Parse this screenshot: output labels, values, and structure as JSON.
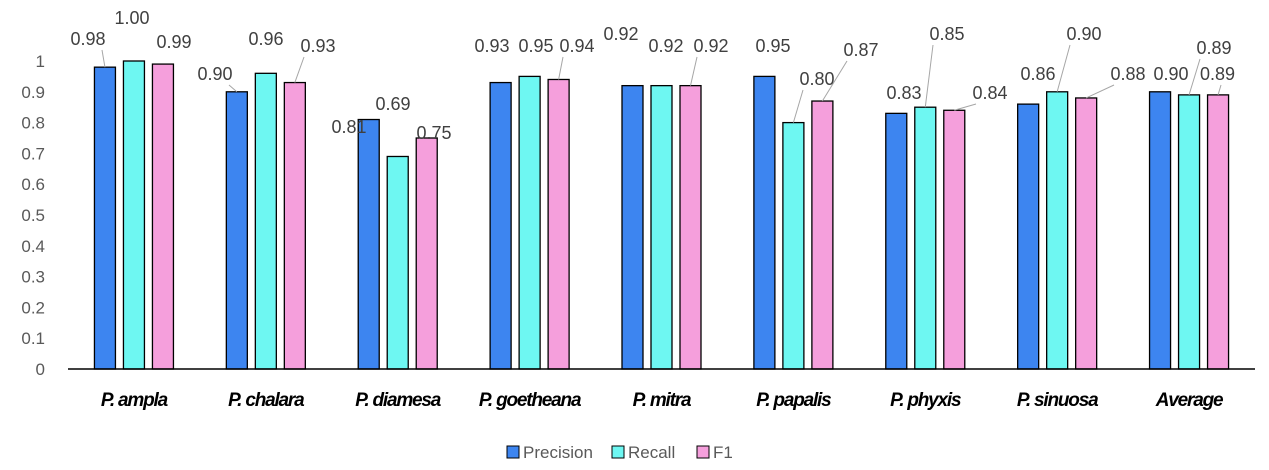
{
  "chart_data": {
    "type": "bar",
    "categories": [
      "P. ampla",
      "P. chalara",
      "P. diamesa",
      "P. goetheana",
      "P. mitra",
      "P. papalis",
      "P. phyxis",
      "P. sinuosa",
      "Average"
    ],
    "series": [
      {
        "name": "Precision",
        "color": "#3d85f0",
        "values": [
          0.98,
          0.9,
          0.81,
          0.93,
          0.92,
          0.95,
          0.83,
          0.86,
          0.9
        ],
        "labels": [
          "0.98",
          "0.90",
          "0.81",
          "0.93",
          "0.92",
          "0.95",
          "0.83",
          "0.86",
          "0.90"
        ]
      },
      {
        "name": "Recall",
        "color": "#6ef7f2",
        "values": [
          1.0,
          0.96,
          0.69,
          0.95,
          0.92,
          0.8,
          0.85,
          0.9,
          0.89
        ],
        "labels": [
          "1.00",
          "0.96",
          "0.69",
          "0.95",
          "0.92",
          "0.80",
          "0.85",
          "0.90",
          "0.89"
        ]
      },
      {
        "name": "F1",
        "color": "#f59fdc",
        "values": [
          0.99,
          0.93,
          0.75,
          0.94,
          0.92,
          0.87,
          0.84,
          0.88,
          0.89
        ],
        "labels": [
          "0.99",
          "0.93",
          "0.75",
          "0.94",
          "0.92",
          "0.87",
          "0.84",
          "0.88",
          "0.89"
        ]
      }
    ],
    "yticks": [
      "0",
      "0.1",
      "0.2",
      "0.3",
      "0.4",
      "0.5",
      "0.6",
      "0.7",
      "0.8",
      "0.9",
      "1"
    ],
    "ylim": [
      0,
      1
    ],
    "title": "",
    "xlabel": "",
    "ylabel": "",
    "grid": false,
    "legend_position": "bottom"
  }
}
